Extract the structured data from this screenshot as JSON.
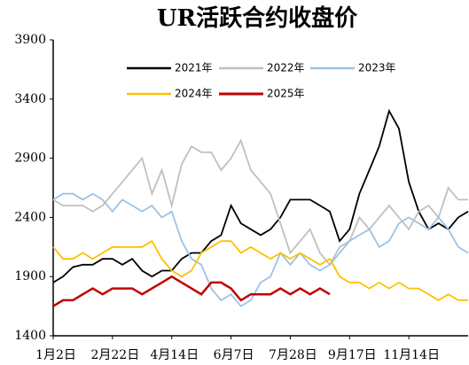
{
  "chart_data": {
    "type": "line",
    "title": "UR活跃合约收盘价",
    "categories": [
      "1月2日",
      null,
      null,
      null,
      null,
      null,
      "2月22日",
      null,
      null,
      null,
      null,
      null,
      "4月14日",
      null,
      null,
      null,
      null,
      null,
      "6月7日",
      null,
      null,
      null,
      null,
      null,
      "7月28日",
      null,
      null,
      null,
      null,
      null,
      "9月17日",
      null,
      null,
      null,
      null,
      null,
      "11月14日",
      null,
      null,
      null,
      null,
      null,
      null
    ],
    "series": [
      {
        "name": "2021年",
        "color": "#000000",
        "values": [
          1850,
          1900,
          1980,
          2000,
          2000,
          2050,
          2050,
          2000,
          2050,
          1950,
          1900,
          1950,
          1950,
          2050,
          2100,
          2100,
          2200,
          2250,
          2500,
          2350,
          2300,
          2250,
          2300,
          2400,
          2550,
          2550,
          2550,
          2500,
          2450,
          2200,
          2300,
          2600,
          2800,
          3000,
          3300,
          3150,
          2700,
          2450,
          2300,
          2350,
          2300,
          2400,
          2450
        ]
      },
      {
        "name": "2022年",
        "color": "#c0c0c0",
        "values": [
          2550,
          2500,
          2500,
          2500,
          2450,
          2500,
          2600,
          2700,
          2800,
          2900,
          2600,
          2800,
          2500,
          2850,
          3000,
          2950,
          2950,
          2800,
          2900,
          3050,
          2800,
          2700,
          2600,
          2350,
          2100,
          2200,
          2300,
          2100,
          2000,
          2150,
          2200,
          2400,
          2300,
          2400,
          2500,
          2400,
          2300,
          2450,
          2500,
          2400,
          2650,
          2550,
          2550
        ]
      },
      {
        "name": "2023年",
        "color": "#9dc3e6",
        "values": [
          2550,
          2600,
          2600,
          2550,
          2600,
          2550,
          2450,
          2550,
          2500,
          2450,
          2500,
          2400,
          2450,
          2200,
          2050,
          2000,
          1800,
          1700,
          1750,
          1650,
          1700,
          1850,
          1900,
          2100,
          2000,
          2100,
          2000,
          1950,
          2000,
          2100,
          2200,
          2250,
          2300,
          2150,
          2200,
          2350,
          2400,
          2350,
          2300,
          2400,
          2300,
          2150,
          2100
        ]
      },
      {
        "name": "2024年",
        "color": "#ffc000",
        "values": [
          2150,
          2050,
          2050,
          2100,
          2050,
          2100,
          2150,
          2150,
          2150,
          2150,
          2200,
          2050,
          1950,
          1900,
          1950,
          2100,
          2150,
          2200,
          2200,
          2100,
          2150,
          2100,
          2050,
          2100,
          2050,
          2100,
          2050,
          2000,
          2050,
          1900,
          1850,
          1850,
          1800,
          1850,
          1800,
          1850,
          1800,
          1800,
          1750,
          1700,
          1750,
          1700,
          1700
        ]
      },
      {
        "name": "2025年",
        "color": "#c00000",
        "values": [
          1650,
          1700,
          1700,
          1750,
          1800,
          1750,
          1800,
          1800,
          1800,
          1750,
          1800,
          1850,
          1900,
          1850,
          1800,
          1750,
          1850,
          1850,
          1800,
          1700,
          1750,
          1750,
          1750,
          1800,
          1750,
          1800,
          1750,
          1800,
          1750,
          null,
          null,
          null,
          null,
          null,
          null,
          null,
          null,
          null,
          null,
          null,
          null,
          null,
          null
        ]
      }
    ],
    "ylim": [
      1400,
      3900
    ],
    "yticks": [
      1400,
      1900,
      2400,
      2900,
      3400,
      3900
    ]
  }
}
